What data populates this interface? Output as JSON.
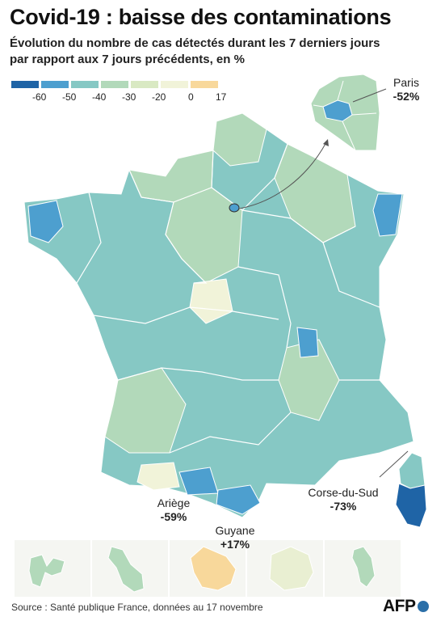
{
  "title": "Covid-19 : baisse des contaminations",
  "subtitle_line1": "Évolution du nombre de cas détectés durant les 7 derniers jours",
  "subtitle_line2": "par rapport aux 7 jours précédents, en %",
  "legend": {
    "colors": [
      "#1f64a6",
      "#4d9fcf",
      "#86c8c4",
      "#b2d9ba",
      "#d9e9c3",
      "#f1f3d9",
      "#f8d89b"
    ],
    "labels": [
      "-60",
      "-50",
      "-40",
      "-30",
      "-20",
      "0",
      "17"
    ]
  },
  "callouts": {
    "paris": {
      "name": "Paris",
      "value": "-52%"
    },
    "ariege": {
      "name": "Ariège",
      "value": "-59%"
    },
    "corse": {
      "name": "Corse-du-Sud",
      "value": "-73%"
    },
    "guyane": {
      "name": "Guyane",
      "value": "+17%"
    }
  },
  "colors": {
    "border": "#ffffff",
    "metro_light": "#b2d9ba",
    "metro_mid": "#86c8c4",
    "paris": "#4d9fcf",
    "corse_sud": "#1f64a6",
    "guyane": "#f8d89b",
    "reunion": "#e9efd2"
  },
  "source": "Source : Santé publique France, données au 17 novembre",
  "logo": "AFP"
}
